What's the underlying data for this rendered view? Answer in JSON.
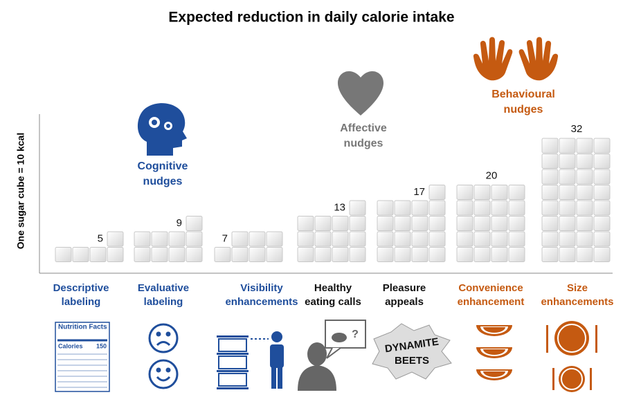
{
  "chart_data": {
    "type": "pictogram",
    "title": "Expected reduction in daily calorie intake",
    "y_label": "One sugar cube = 10 kcal",
    "categories": [
      [
        "Descriptive",
        "labeling"
      ],
      [
        "Evaluative",
        "labeling"
      ],
      [
        "Visibility",
        "enhancements"
      ],
      [
        "Healthy",
        "eating calls"
      ],
      [
        "Pleasure",
        "appeals"
      ],
      [
        "Convenience",
        "enhancement"
      ],
      [
        "Size",
        "enhancements"
      ]
    ],
    "category_colors": [
      "#1f4e9c",
      "#1f4e9c",
      "#1f4e9c",
      "#111111",
      "#111111",
      "#c55a11",
      "#c55a11"
    ],
    "values": [
      5,
      9,
      7,
      13,
      17,
      20,
      32
    ],
    "groups": [
      {
        "label": [
          "Cognitive",
          "nudges"
        ],
        "color": "#1f4e9c"
      },
      {
        "label": [
          "Affective",
          "nudges"
        ],
        "color": "#777777"
      },
      {
        "label": [
          "Behavioural",
          "nudges"
        ],
        "color": "#c55a11"
      }
    ],
    "icon_texts": {
      "nutrition": "Nutrition Facts",
      "calories": "Calories",
      "calories_value": "150",
      "question": "?",
      "beets": [
        "DYNAMITE",
        "BEETS"
      ]
    }
  }
}
